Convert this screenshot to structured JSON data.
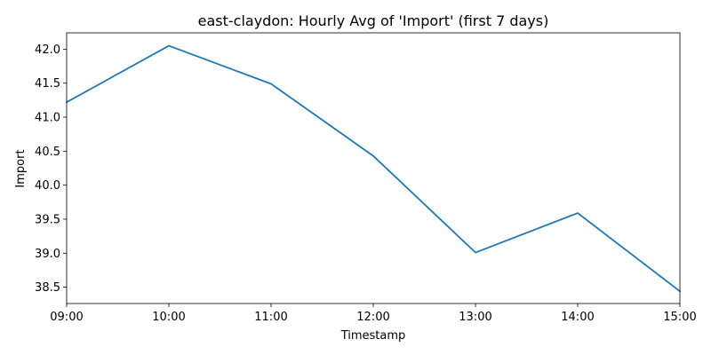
{
  "chart_data": {
    "type": "line",
    "title": "east-claydon: Hourly Avg of 'Import' (first 7 days)",
    "xlabel": "Timestamp",
    "ylabel": "Import",
    "x": [
      "09:00",
      "10:00",
      "11:00",
      "12:00",
      "13:00",
      "14:00",
      "15:00"
    ],
    "series": [
      {
        "values": [
          41.22,
          42.05,
          41.49,
          40.43,
          39.01,
          39.59,
          38.44
        ],
        "color": "#1f77b4"
      }
    ],
    "xtick_labels": [
      "09:00",
      "10:00",
      "11:00",
      "12:00",
      "13:00",
      "14:00",
      "15:00"
    ],
    "yticks": [
      38.5,
      39.0,
      39.5,
      40.0,
      40.5,
      41.0,
      41.5,
      42.0
    ],
    "ytick_labels": [
      "38.5",
      "39.0",
      "39.5",
      "40.0",
      "40.5",
      "41.0",
      "41.5",
      "42.0"
    ],
    "ylim": [
      38.26,
      42.24
    ],
    "grid": false,
    "legend": false
  }
}
